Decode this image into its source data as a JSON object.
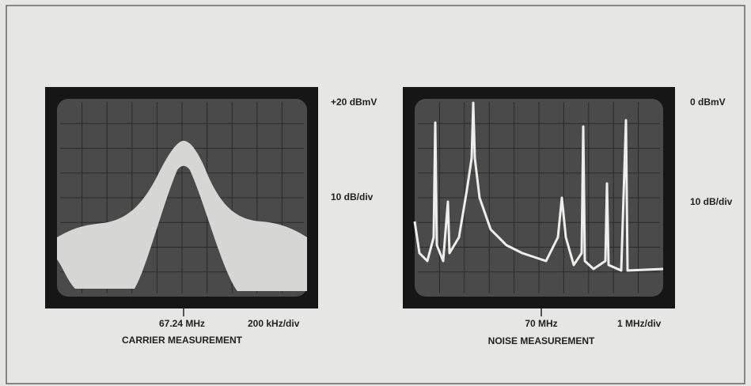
{
  "panels": [
    {
      "reference_level": "+20 dBmV",
      "vertical_scale": "10 dB/div",
      "center_frequency": "67.24 MHz",
      "horizontal_scale": "200 kHz/div",
      "caption": "CARRIER MEASUREMENT"
    },
    {
      "reference_level": "0 dBmV",
      "vertical_scale": "10 dB/div",
      "center_frequency": "70 MHz",
      "horizontal_scale": "1 MHz/div",
      "caption": "NOISE MEASUREMENT"
    }
  ]
}
